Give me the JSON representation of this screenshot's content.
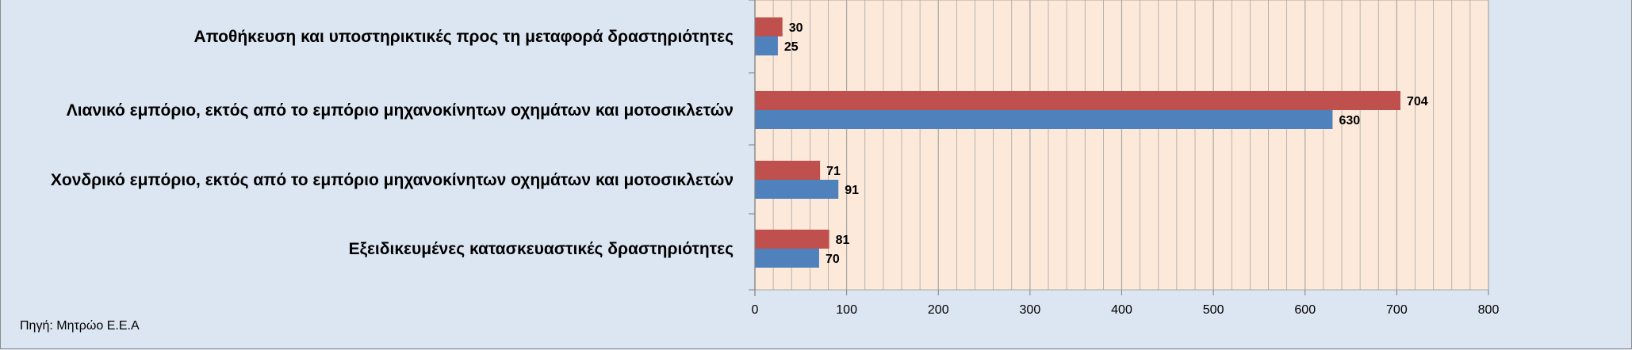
{
  "source_note": "Πηγή: Μητρώο Ε.Ε.Α",
  "chart_data": {
    "type": "bar",
    "orientation": "horizontal",
    "categories": [
      "Αποθήκευση και υποστηρικτικές προς τη μεταφορά δραστηριότητες",
      "Λιανικό εμπόριο, εκτός από το εμπόριο μηχανοκίνητων οχημάτων και μοτοσικλετών",
      "Χονδρικό εμπόριο, εκτός από το εμπόριο μηχανοκίνητων οχημάτων και μοτοσικλετών",
      "Εξειδικευμένες κατασκευαστικές δραστηριότητες"
    ],
    "series": [
      {
        "values": [
          30,
          704,
          71,
          81
        ],
        "color": "#c0504d"
      },
      {
        "values": [
          25,
          630,
          91,
          70
        ],
        "color": "#4f81bd"
      }
    ],
    "xlim": [
      0,
      800
    ],
    "xticks": [
      0,
      100,
      200,
      300,
      400,
      500,
      600,
      700,
      800
    ],
    "minor_gridlines_step": 20,
    "plot_background": "#fde9d9",
    "gridline_color": "#a6a6a6",
    "title": "",
    "xlabel": "",
    "ylabel": ""
  }
}
